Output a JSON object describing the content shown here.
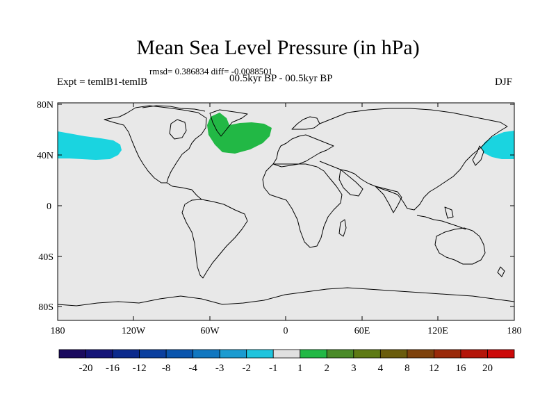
{
  "title": "Mean Sea Level Pressure (in hPa)",
  "stats": "rmsd= 0.386834 diff= -0.0088501",
  "experiment": "Expt = temlB1-temlB",
  "period": "00.5kyr BP - 00.5kyr BP",
  "season": "DJF",
  "axes": {
    "y_ticks": [
      "80N",
      "40N",
      "0",
      "40S",
      "80S"
    ],
    "x_ticks": [
      "180",
      "120W",
      "60W",
      "0",
      "60E",
      "120E",
      "180"
    ]
  },
  "colorbar": {
    "labels": [
      "-20",
      "-16",
      "-12",
      "-8",
      "-4",
      "-3",
      "-2",
      "-1",
      "1",
      "2",
      "3",
      "4",
      "8",
      "12",
      "16",
      "20"
    ],
    "colors": [
      "#1a0a5e",
      "#141477",
      "#0c2a8c",
      "#0b3f9e",
      "#0a55ad",
      "#1177c0",
      "#1b9bd0",
      "#20c4dd",
      "#e0e0e0",
      "#22b845",
      "#4a8a28",
      "#5e7a14",
      "#6a5c0c",
      "#7e420c",
      "#9a2a0a",
      "#b4160a",
      "#cc0a0a"
    ]
  },
  "colors": {
    "land_sea_bg": "#e8e8e8",
    "negative_anomaly": "#1ad4e0",
    "positive_anomaly": "#22b845"
  }
}
